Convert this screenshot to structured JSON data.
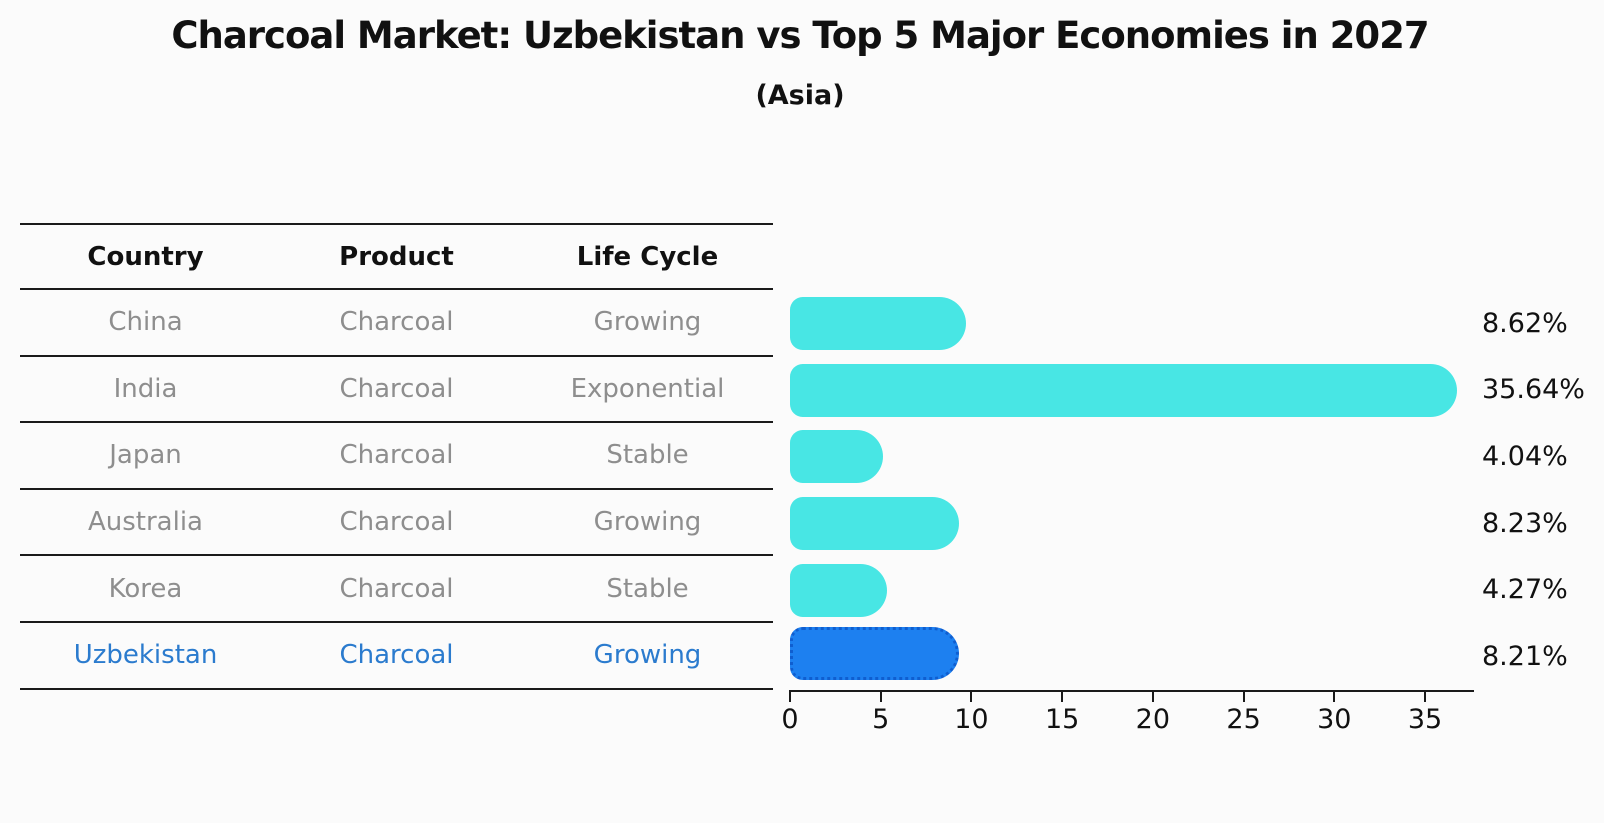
{
  "title": "Charcoal Market: Uzbekistan vs Top 5 Major Economies in 2027",
  "subtitle": "(Asia)",
  "table": {
    "headers": [
      "Country",
      "Product",
      "Life Cycle"
    ],
    "rows": [
      {
        "country": "China",
        "product": "Charcoal",
        "life_cycle": "Growing",
        "highlight": false
      },
      {
        "country": "India",
        "product": "Charcoal",
        "life_cycle": "Exponential",
        "highlight": false
      },
      {
        "country": "Japan",
        "product": "Charcoal",
        "life_cycle": "Stable",
        "highlight": false
      },
      {
        "country": "Australia",
        "product": "Charcoal",
        "life_cycle": "Growing",
        "highlight": false
      },
      {
        "country": "Korea",
        "product": "Charcoal",
        "life_cycle": "Stable",
        "highlight": false
      },
      {
        "country": "Uzbekistan",
        "product": "Charcoal",
        "life_cycle": "Growing",
        "highlight": true
      }
    ]
  },
  "chart_data": {
    "type": "bar",
    "orientation": "horizontal",
    "title": "Charcoal Market: Uzbekistan vs Top 5 Major Economies in 2027",
    "subtitle": "(Asia)",
    "categories": [
      "China",
      "India",
      "Japan",
      "Australia",
      "Korea",
      "Uzbekistan"
    ],
    "values": [
      8.62,
      35.64,
      4.04,
      8.23,
      4.27,
      8.21
    ],
    "value_labels": [
      "8.62%",
      "35.64%",
      "4.04%",
      "8.23%",
      "4.27%",
      "8.21%"
    ],
    "x_ticks": [
      0,
      5,
      10,
      15,
      20,
      25,
      30,
      35
    ],
    "xlim": [
      0,
      37.7
    ],
    "grid": false,
    "legend": false,
    "highlight_index": 5,
    "highlight_category": "Uzbekistan"
  },
  "colors": {
    "bar": "#48e6e4",
    "highlight_bar": "#1d80f0",
    "highlight_border": "#0f5ed0",
    "row_text": "#8e8e8e",
    "highlight_text": "#2b7bce",
    "axis_line": "#1a1a1a",
    "text": "#111111",
    "background": "#fbfbfb"
  }
}
